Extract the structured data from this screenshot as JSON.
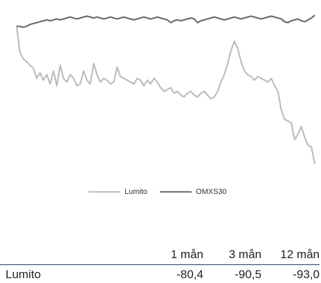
{
  "chart_data": {
    "type": "line",
    "series": [
      {
        "name": "Lumito",
        "color": "#bdbdbd",
        "values": [
          100,
          72,
          65,
          62,
          58,
          55,
          44,
          50,
          42,
          48,
          38,
          52,
          36,
          58,
          44,
          40,
          48,
          44,
          36,
          38,
          52,
          42,
          38,
          60,
          48,
          40,
          44,
          42,
          38,
          40,
          56,
          46,
          44,
          42,
          40,
          38,
          44,
          42,
          36,
          42,
          38,
          44,
          40,
          34,
          30,
          32,
          34,
          28,
          30,
          26,
          24,
          28,
          30,
          26,
          24,
          28,
          30,
          26,
          22,
          24,
          30,
          40,
          48,
          60,
          74,
          84,
          76,
          62,
          52,
          48,
          46,
          42,
          46,
          44,
          42,
          40,
          44,
          36,
          30,
          10,
          0,
          -2,
          -4,
          -22,
          -16,
          -8,
          -20,
          -28,
          -30,
          -48
        ]
      },
      {
        "name": "OMXS30",
        "color": "#6b6b6b",
        "values": [
          100,
          100,
          99,
          100,
          102,
          103,
          104,
          105,
          106,
          107,
          106,
          107,
          108,
          107,
          108,
          109,
          110,
          109,
          108,
          109,
          110,
          111,
          110,
          109,
          110,
          109,
          108,
          109,
          110,
          109,
          108,
          109,
          110,
          109,
          108,
          107,
          108,
          109,
          110,
          109,
          108,
          109,
          110,
          109,
          108,
          107,
          104,
          106,
          107,
          106,
          107,
          108,
          109,
          108,
          104,
          106,
          107,
          108,
          109,
          110,
          109,
          108,
          107,
          108,
          109,
          110,
          109,
          108,
          109,
          110,
          111,
          110,
          109,
          108,
          109,
          110,
          111,
          110,
          109,
          108,
          105,
          104,
          106,
          107,
          108,
          106,
          105,
          107,
          109,
          112
        ]
      }
    ],
    "grid": false,
    "legend": "bottom-center"
  },
  "legend": {
    "items": [
      {
        "label": "Lumito",
        "color": "#bdbdbd"
      },
      {
        "label": "OMXS30",
        "color": "#6b6b6b"
      }
    ]
  },
  "table": {
    "headers": [
      "",
      "1 mån",
      "3 mån",
      "12 mån"
    ],
    "rows": [
      {
        "name": "Lumito",
        "values": [
          "-80,4",
          "-90,5",
          "-93,0"
        ]
      }
    ]
  }
}
